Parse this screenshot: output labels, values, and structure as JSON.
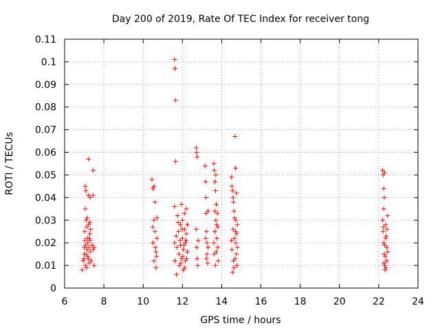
{
  "chart_data": {
    "type": "scatter",
    "title": "Day 200 of 2019, Rate Of TEC Index for receiver tong",
    "xlabel": "GPS time / hours",
    "ylabel": "ROTI / TECUs",
    "xlim": [
      6,
      24
    ],
    "ylim": [
      0,
      0.11
    ],
    "xticks": [
      "6",
      "8",
      "10",
      "12",
      "14",
      "16",
      "18",
      "20",
      "22",
      "24"
    ],
    "yticks": [
      "0",
      "0.01",
      "0.02",
      "0.03",
      "0.04",
      "0.05",
      "0.06",
      "0.07",
      "0.08",
      "0.09",
      "0.1",
      "0.11"
    ],
    "grid": true,
    "marker": "+",
    "color": "#ff0000",
    "series": [
      {
        "name": "ROTI",
        "points": [
          [
            6.9,
            0.008
          ],
          [
            6.95,
            0.012
          ],
          [
            7.0,
            0.018
          ],
          [
            7.02,
            0.025
          ],
          [
            7.05,
            0.035
          ],
          [
            7.05,
            0.045
          ],
          [
            7.08,
            0.043
          ],
          [
            7.1,
            0.03
          ],
          [
            7.1,
            0.015
          ],
          [
            7.12,
            0.009
          ],
          [
            7.15,
            0.022
          ],
          [
            7.15,
            0.031
          ],
          [
            7.18,
            0.014
          ],
          [
            7.2,
            0.041
          ],
          [
            7.22,
            0.057
          ],
          [
            7.22,
            0.028
          ],
          [
            7.25,
            0.018
          ],
          [
            7.25,
            0.011
          ],
          [
            7.28,
            0.024
          ],
          [
            7.3,
            0.04
          ],
          [
            7.3,
            0.016
          ],
          [
            7.35,
            0.012
          ],
          [
            7.4,
            0.019
          ],
          [
            7.45,
            0.052
          ],
          [
            7.45,
            0.041
          ],
          [
            7.45,
            0.017
          ],
          [
            7.5,
            0.01
          ],
          [
            7.5,
            0.018
          ],
          [
            7.0,
            0.015
          ],
          [
            7.02,
            0.021
          ],
          [
            7.08,
            0.019
          ],
          [
            7.12,
            0.027
          ],
          [
            7.18,
            0.02
          ],
          [
            7.2,
            0.013
          ],
          [
            7.28,
            0.029
          ],
          [
            7.3,
            0.021
          ],
          [
            7.32,
            0.026
          ],
          [
            7.05,
            0.01
          ],
          [
            6.98,
            0.013
          ],
          [
            7.15,
            0.017
          ],
          [
            7.25,
            0.022
          ],
          [
            10.45,
            0.048
          ],
          [
            10.5,
            0.044
          ],
          [
            10.5,
            0.02
          ],
          [
            10.55,
            0.03
          ],
          [
            10.55,
            0.012
          ],
          [
            10.6,
            0.038
          ],
          [
            10.6,
            0.025
          ],
          [
            10.65,
            0.016
          ],
          [
            10.65,
            0.009
          ],
          [
            10.7,
            0.022
          ],
          [
            10.7,
            0.031
          ],
          [
            10.55,
            0.045
          ],
          [
            10.62,
            0.018
          ],
          [
            10.48,
            0.027
          ],
          [
            10.68,
            0.014
          ],
          [
            11.6,
            0.101
          ],
          [
            11.62,
            0.097
          ],
          [
            11.65,
            0.083
          ],
          [
            11.65,
            0.056
          ],
          [
            11.6,
            0.036
          ],
          [
            11.6,
            0.02
          ],
          [
            11.62,
            0.012
          ],
          [
            11.7,
            0.006
          ],
          [
            11.75,
            0.032
          ],
          [
            11.8,
            0.025
          ],
          [
            11.82,
            0.015
          ],
          [
            11.85,
            0.01
          ],
          [
            11.9,
            0.028
          ],
          [
            11.9,
            0.019
          ],
          [
            11.95,
            0.037
          ],
          [
            11.95,
            0.013
          ],
          [
            12.0,
            0.022
          ],
          [
            12.0,
            0.03
          ],
          [
            12.05,
            0.008
          ],
          [
            12.05,
            0.017
          ],
          [
            12.1,
            0.026
          ],
          [
            12.1,
            0.033
          ],
          [
            12.15,
            0.012
          ],
          [
            12.15,
            0.02
          ],
          [
            12.2,
            0.024
          ],
          [
            12.2,
            0.035
          ],
          [
            12.25,
            0.016
          ],
          [
            12.25,
            0.028
          ],
          [
            11.68,
            0.023
          ],
          [
            11.72,
            0.018
          ],
          [
            11.78,
            0.029
          ],
          [
            11.88,
            0.021
          ],
          [
            11.92,
            0.011
          ],
          [
            11.98,
            0.026
          ],
          [
            12.02,
            0.014
          ],
          [
            12.08,
            0.019
          ],
          [
            12.12,
            0.009
          ],
          [
            12.18,
            0.021
          ],
          [
            12.22,
            0.013
          ],
          [
            12.7,
            0.062
          ],
          [
            12.72,
            0.06
          ],
          [
            12.75,
            0.058
          ],
          [
            12.7,
            0.026
          ],
          [
            12.72,
            0.018
          ],
          [
            12.75,
            0.013
          ],
          [
            12.8,
            0.021
          ],
          [
            12.78,
            0.01
          ],
          [
            13.15,
            0.054
          ],
          [
            13.18,
            0.047
          ],
          [
            13.2,
            0.04
          ],
          [
            13.2,
            0.033
          ],
          [
            13.22,
            0.025
          ],
          [
            13.25,
            0.02
          ],
          [
            13.25,
            0.015
          ],
          [
            13.28,
            0.011
          ],
          [
            13.3,
            0.034
          ],
          [
            13.3,
            0.018
          ],
          [
            13.18,
            0.022
          ],
          [
            13.22,
            0.013
          ],
          [
            13.6,
            0.055
          ],
          [
            13.62,
            0.052
          ],
          [
            13.65,
            0.047
          ],
          [
            13.68,
            0.043
          ],
          [
            13.7,
            0.05
          ],
          [
            13.72,
            0.037
          ],
          [
            13.7,
            0.03
          ],
          [
            13.65,
            0.025
          ],
          [
            13.6,
            0.02
          ],
          [
            13.62,
            0.015
          ],
          [
            13.68,
            0.01
          ],
          [
            13.75,
            0.022
          ],
          [
            13.78,
            0.033
          ],
          [
            13.8,
            0.018
          ],
          [
            13.8,
            0.027
          ],
          [
            13.82,
            0.012
          ],
          [
            13.72,
            0.016
          ],
          [
            13.66,
            0.034
          ],
          [
            13.74,
            0.028
          ],
          [
            14.5,
            0.049
          ],
          [
            14.52,
            0.045
          ],
          [
            14.55,
            0.043
          ],
          [
            14.58,
            0.04
          ],
          [
            14.6,
            0.038
          ],
          [
            14.62,
            0.034
          ],
          [
            14.65,
            0.031
          ],
          [
            14.68,
            0.067
          ],
          [
            14.7,
            0.053
          ],
          [
            14.7,
            0.025
          ],
          [
            14.72,
            0.02
          ],
          [
            14.75,
            0.015
          ],
          [
            14.78,
            0.01
          ],
          [
            14.8,
            0.018
          ],
          [
            14.8,
            0.028
          ],
          [
            14.55,
            0.007
          ],
          [
            14.6,
            0.012
          ],
          [
            14.65,
            0.022
          ],
          [
            14.52,
            0.017
          ],
          [
            14.58,
            0.026
          ],
          [
            14.62,
            0.009
          ],
          [
            14.68,
            0.013
          ],
          [
            14.72,
            0.03
          ],
          [
            14.75,
            0.042
          ],
          [
            14.5,
            0.021
          ],
          [
            14.76,
            0.024
          ],
          [
            22.2,
            0.052
          ],
          [
            22.22,
            0.05
          ],
          [
            22.25,
            0.044
          ],
          [
            22.28,
            0.04
          ],
          [
            22.3,
            0.051
          ],
          [
            22.25,
            0.035
          ],
          [
            22.2,
            0.03
          ],
          [
            22.22,
            0.025
          ],
          [
            22.25,
            0.02
          ],
          [
            22.28,
            0.015
          ],
          [
            22.3,
            0.01
          ],
          [
            22.32,
            0.008
          ],
          [
            22.35,
            0.022
          ],
          [
            22.35,
            0.028
          ],
          [
            22.4,
            0.018
          ],
          [
            22.4,
            0.012
          ],
          [
            22.42,
            0.026
          ],
          [
            22.45,
            0.032
          ],
          [
            22.45,
            0.016
          ],
          [
            22.3,
            0.019
          ],
          [
            22.26,
            0.011
          ],
          [
            22.38,
            0.023
          ],
          [
            22.33,
            0.014
          ],
          [
            22.24,
            0.027
          ],
          [
            22.36,
            0.009
          ]
        ]
      }
    ]
  }
}
